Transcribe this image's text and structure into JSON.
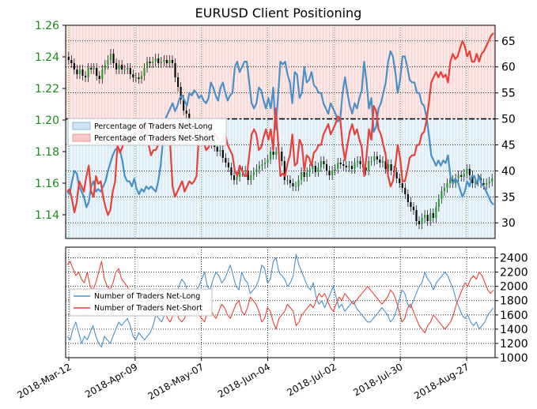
{
  "chart_data": [
    {
      "type": "line",
      "title": "EURUSD Client Positioning",
      "x_tick_labels": [
        "2018-Mar-12",
        "2018-Apr-09",
        "2018-May-07",
        "2018-Jun-04",
        "2018-Jul-02",
        "2018-Jul-30",
        "2018-Aug-27"
      ],
      "price_axis": {
        "ticks": [
          "1.26",
          "1.24",
          "1.22",
          "1.20",
          "1.18",
          "1.16",
          "1.14"
        ],
        "ylim": [
          1.125,
          1.26
        ],
        "color": "#1a8a1a"
      },
      "pct_axis": {
        "ticks": [
          "65",
          "60",
          "55",
          "50",
          "45",
          "40",
          "35",
          "30"
        ],
        "ylim": [
          27,
          68
        ]
      },
      "reference_line": 50,
      "legend": [
        "Percentage of Traders Net-Long",
        "Percentage of Traders Net-Short"
      ],
      "legend_position": "upper-left",
      "grid": true,
      "series": [
        {
          "name": "Percentage of Traders Net-Long",
          "color": "#4a90c8",
          "values": [
            36,
            35.5,
            38,
            40,
            39.5,
            37,
            36,
            35,
            33,
            34,
            37,
            38,
            36,
            36.5,
            36,
            37,
            38,
            40,
            41.5,
            43,
            44,
            44.5,
            44,
            42,
            39,
            38,
            38,
            37,
            38.5,
            36.5,
            35.5,
            36.5,
            36,
            37,
            36.5,
            37,
            36.5,
            36,
            38,
            41,
            46,
            50,
            51,
            52,
            53,
            51.5,
            52.5,
            54,
            54.5,
            53.5,
            52.5,
            55,
            54.5,
            55.5,
            55,
            54,
            54.5,
            53.5,
            53,
            54,
            57,
            56,
            54.5,
            53.5,
            56,
            57,
            55,
            53.5,
            54.5,
            55,
            60,
            61,
            59,
            60,
            61,
            61,
            57,
            53,
            52,
            53,
            56,
            55.5,
            53.5,
            52,
            54,
            52,
            56,
            48,
            54,
            61,
            60.5,
            61,
            58.5,
            57,
            53,
            59,
            58.5,
            54,
            55,
            60,
            57,
            57.5,
            59,
            56.5,
            56,
            55,
            55,
            53,
            52,
            51,
            53,
            52,
            51,
            49.5,
            50,
            55,
            58,
            55,
            52.5,
            51,
            53,
            52,
            54,
            55.5,
            61,
            57,
            52,
            54,
            47.5,
            48.5,
            52,
            53,
            55,
            57,
            61,
            63,
            62,
            59,
            55,
            57.5,
            62,
            62,
            60,
            57.5,
            57,
            57,
            55,
            55,
            53,
            52.5,
            50.5,
            47,
            43,
            42,
            41,
            42,
            41,
            42,
            41.5,
            43,
            39,
            37.5,
            38.5,
            38,
            36.5,
            35,
            36,
            38,
            37,
            39,
            39,
            37.5,
            39,
            37.5,
            37,
            36,
            35,
            34,
            33.5
          ]
        },
        {
          "name": "Percentage of Traders Net-Short",
          "color": "#e6423a",
          "values": [
            36,
            36.5,
            34.5,
            32,
            34,
            38,
            37,
            36,
            39,
            41,
            36,
            35,
            39,
            37.5,
            38,
            35,
            33,
            31.5,
            32.5,
            36,
            38,
            45,
            43.5,
            44.5,
            47,
            46,
            45,
            46,
            47,
            48.5,
            48,
            47,
            49,
            48.5,
            45,
            43,
            44,
            44,
            45,
            46,
            45,
            46,
            48,
            45,
            37,
            35,
            36,
            37,
            38,
            36,
            37,
            38,
            37.5,
            38,
            39,
            47,
            46,
            45.5,
            44,
            44.5,
            45.5,
            46,
            47,
            46,
            45.5,
            45.5,
            47,
            45,
            44,
            43,
            40,
            39,
            41,
            40,
            39,
            39,
            43,
            47,
            48,
            47,
            44,
            44.5,
            46.5,
            48,
            46,
            48,
            44,
            52,
            46,
            39,
            39.5,
            39,
            41.5,
            43,
            47,
            41,
            41.5,
            46,
            45,
            40,
            43,
            42.5,
            41,
            43.5,
            44,
            45,
            45,
            47,
            48,
            49,
            47,
            48,
            49,
            50.5,
            50,
            45,
            42,
            45,
            47.5,
            49,
            47,
            48,
            46,
            44.5,
            39,
            43,
            48,
            46,
            52.5,
            51.5,
            48,
            47,
            45,
            43,
            39,
            37,
            38,
            41,
            45,
            42.5,
            38,
            38,
            40,
            42.5,
            43,
            43,
            45,
            45,
            47,
            47.5,
            49.5,
            53,
            57,
            58,
            59,
            58,
            59,
            58,
            58.5,
            57,
            61,
            62.5,
            61.5,
            62,
            63.5,
            65,
            64,
            62,
            63,
            61,
            61,
            62.5,
            61,
            62.5,
            63,
            64,
            65,
            66,
            66.5
          ]
        }
      ],
      "price_candles_close": [
        1.238,
        1.236,
        1.232,
        1.229,
        1.232,
        1.228,
        1.227,
        1.233,
        1.232,
        1.233,
        1.228,
        1.226,
        1.232,
        1.235,
        1.238,
        1.242,
        1.236,
        1.232,
        1.235,
        1.232,
        1.232,
        1.233,
        1.229,
        1.227,
        1.227,
        1.226,
        1.228,
        1.233,
        1.237,
        1.236,
        1.237,
        1.239,
        1.236,
        1.237,
        1.238,
        1.236,
        1.238,
        1.236,
        1.227,
        1.221,
        1.213,
        1.206,
        1.204,
        1.195,
        1.196,
        1.192,
        1.191,
        1.197,
        1.196,
        1.187,
        1.185,
        1.188,
        1.183,
        1.18,
        1.181,
        1.176,
        1.173,
        1.17,
        1.165,
        1.162,
        1.164,
        1.167,
        1.168,
        1.168,
        1.162,
        1.165,
        1.167,
        1.169,
        1.171,
        1.172,
        1.173,
        1.175,
        1.18,
        1.178,
        1.18,
        1.18,
        1.174,
        1.162,
        1.162,
        1.16,
        1.158,
        1.158,
        1.162,
        1.167,
        1.164,
        1.167,
        1.169,
        1.171,
        1.167,
        1.17,
        1.174,
        1.172,
        1.168,
        1.165,
        1.168,
        1.169,
        1.173,
        1.172,
        1.171,
        1.17,
        1.171,
        1.169,
        1.173,
        1.174,
        1.172,
        1.17,
        1.168,
        1.174,
        1.174,
        1.177,
        1.175,
        1.173,
        1.174,
        1.169,
        1.172,
        1.168,
        1.167,
        1.163,
        1.16,
        1.157,
        1.153,
        1.148,
        1.145,
        1.143,
        1.136,
        1.134,
        1.138,
        1.14,
        1.136,
        1.141,
        1.138,
        1.145,
        1.15,
        1.155,
        1.157,
        1.16,
        1.162,
        1.16,
        1.163,
        1.165,
        1.164,
        1.166,
        1.169,
        1.165,
        1.16,
        1.161,
        1.163,
        1.16,
        1.159,
        1.16,
        1.161,
        1.163
      ],
      "price_candles_count": 150
    },
    {
      "type": "line",
      "legend": [
        "Number of Traders Net-Long",
        "Number of Traders Net-Short"
      ],
      "legend_position": "center-left",
      "y_ticks": [
        "2400",
        "2200",
        "2000",
        "1800",
        "1600",
        "1400",
        "1200",
        "1000"
      ],
      "ylim": [
        1000,
        2550
      ],
      "grid": true,
      "series": [
        {
          "name": "Number of Traders Net-Long",
          "color": "#4a90c8",
          "values": [
            1300,
            1250,
            1400,
            1500,
            1350,
            1200,
            1300,
            1250,
            1350,
            1450,
            1300,
            1200,
            1150,
            1300,
            1250,
            1200,
            1300,
            1400,
            1500,
            1450,
            1500,
            1550,
            1450,
            1300,
            1250,
            1350,
            1300,
            1250,
            1300,
            1350,
            1450,
            1600,
            1550,
            1500,
            1600,
            1700,
            1800,
            1750,
            1850,
            2000,
            2100,
            2050,
            1950,
            1900,
            1850,
            1950,
            2000,
            2100,
            2200,
            2000,
            1950,
            2100,
            2200,
            2150,
            2050,
            2100,
            2200,
            2300,
            2150,
            2000,
            1950,
            2200,
            2100,
            2050,
            1900,
            1950,
            2000,
            2100,
            2300,
            2250,
            2050,
            2100,
            2350,
            2400,
            2200,
            2150,
            2100,
            2000,
            2050,
            2150,
            2450,
            2300,
            2200,
            2100,
            2000,
            1950,
            2050,
            1850,
            1750,
            1800,
            1700,
            1800,
            1900,
            2000,
            1850,
            1700,
            1750,
            1650,
            1700,
            1750,
            1800,
            1700,
            1650,
            1600,
            1550,
            1500,
            1500,
            1550,
            1600,
            1650,
            1700,
            1650,
            1600,
            1500,
            1550,
            1650,
            1800,
            1950,
            1900,
            1750,
            1700,
            1800,
            1900,
            2000,
            2050,
            2200,
            2100,
            2050,
            1950,
            2050,
            2100,
            2150,
            2200,
            2150,
            2050,
            1950,
            1800,
            1700,
            1600,
            1550,
            1600,
            1500,
            1450,
            1500,
            1400,
            1450,
            1500,
            1600,
            1650,
            1700
          ]
        },
        {
          "name": "Number of Traders Net-Short",
          "color": "#e6423a",
          "values": [
            2300,
            2350,
            2250,
            2150,
            2200,
            2100,
            2050,
            2200,
            2000,
            1950,
            2050,
            2200,
            2350,
            2100,
            2000,
            1950,
            2050,
            2200,
            2250,
            2100,
            2050,
            2000,
            1900,
            1850,
            1800,
            1900,
            1950,
            1850,
            1800,
            1750,
            1700,
            1650,
            1750,
            1850,
            1700,
            1550,
            1500,
            1600,
            1650,
            1550,
            1500,
            1550,
            1650,
            1700,
            1750,
            1650,
            1600,
            1550,
            1500,
            1650,
            1700,
            1600,
            1550,
            1650,
            1750,
            1700,
            1600,
            1550,
            1650,
            1750,
            1800,
            1650,
            1600,
            1700,
            1850,
            1800,
            1750,
            1650,
            1500,
            1550,
            1700,
            1650,
            1500,
            1400,
            1550,
            1600,
            1650,
            1750,
            1700,
            1650,
            1450,
            1500,
            1600,
            1650,
            1700,
            1750,
            1700,
            1800,
            1900,
            1850,
            1900,
            1800,
            1700,
            1650,
            1750,
            1850,
            1800,
            1900,
            1850,
            1800,
            1750,
            1800,
            1850,
            1900,
            1950,
            2000,
            1950,
            1900,
            1850,
            1800,
            1750,
            1800,
            1850,
            1950,
            1900,
            1800,
            1650,
            1500,
            1550,
            1700,
            1750,
            1650,
            1550,
            1450,
            1400,
            1350,
            1450,
            1500,
            1600,
            1550,
            1500,
            1450,
            1400,
            1450,
            1500,
            1600,
            1750,
            1850,
            1950,
            2050,
            2000,
            2100,
            2150,
            2100,
            2200,
            2150,
            2050,
            1950,
            1900,
            1950
          ]
        }
      ]
    }
  ]
}
